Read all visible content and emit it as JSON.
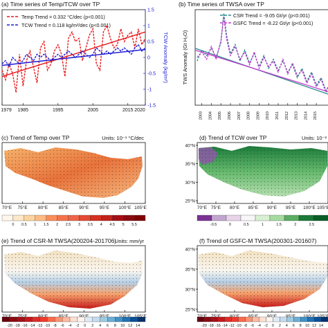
{
  "chart_data": [
    {
      "type": "line",
      "panel": "a",
      "title": "(a) Time series of Temp/TCW over TP",
      "x_ticks": [
        "1979",
        "1985",
        "1995",
        "2005",
        "2015",
        "2020"
      ],
      "x_tick_values": [
        1979,
        1985,
        1995,
        2005,
        2015,
        2020
      ],
      "xlim": [
        1979,
        2020
      ],
      "ylim_right": [
        -1.5,
        1.5
      ],
      "right_ticks": [
        "1.5",
        "1",
        "0.5",
        "0",
        "-0.5",
        "-1",
        "-1.5"
      ],
      "right_tick_values": [
        1.5,
        1,
        0.5,
        0,
        -0.5,
        -1,
        -1.5
      ],
      "ylabel_right": "TCW Anomaly (kg/m²)",
      "legend": [
        "Temp Trend = 0.332 °C/dec (p<0.001)",
        "TCW Trend = 0.118 kg/m²/dec (p<0.001)"
      ],
      "series": [
        {
          "name": "Temp Trend = 0.332 °C/dec (p<0.001)",
          "color": "#e8191b",
          "x": [
            1979,
            1980,
            1981,
            1982,
            1983,
            1984,
            1985,
            1986,
            1987,
            1988,
            1989,
            1990,
            1991,
            1992,
            1993,
            1994,
            1995,
            1996,
            1997,
            1998,
            1999,
            2000,
            2001,
            2002,
            2003,
            2004,
            2005,
            2006,
            2007,
            2008,
            2009,
            2010,
            2011,
            2012,
            2013,
            2014,
            2015,
            2016,
            2017,
            2018,
            2019,
            2020
          ],
          "y": [
            -0.4,
            -0.7,
            -0.2,
            -0.5,
            -1.1,
            0.1,
            -0.9,
            -0.1,
            0.2,
            -0.3,
            -0.8,
            0.3,
            0.5,
            -0.4,
            -0.2,
            0.2,
            0.4,
            0.1,
            -0.6,
            0.6,
            0.8,
            0.5,
            0.6,
            -0.1,
            0.3,
            0.7,
            0.9,
            -0.2,
            -0.4,
            0.8,
            1.0,
            0.6,
            0.3,
            0.4,
            0.9,
            0.5,
            0.7,
            0.8,
            0.3,
            0.9,
            0.4,
            0.6
          ],
          "trend": [
            -0.6,
            0.8
          ]
        },
        {
          "name": "TCW Trend = 0.118 kg/m²/dec (p<0.001)",
          "color": "#1a1ad6",
          "x": [
            1979,
            1980,
            1981,
            1982,
            1983,
            1984,
            1985,
            1986,
            1987,
            1988,
            1989,
            1990,
            1991,
            1992,
            1993,
            1994,
            1995,
            1996,
            1997,
            1998,
            1999,
            2000,
            2001,
            2002,
            2003,
            2004,
            2005,
            2006,
            2007,
            2008,
            2009,
            2010,
            2011,
            2012,
            2013,
            2014,
            2015,
            2016,
            2017,
            2018,
            2019,
            2020
          ],
          "y": [
            -0.2,
            -0.1,
            -0.3,
            0.0,
            -0.1,
            -0.2,
            -0.1,
            0.1,
            0.0,
            -0.1,
            0.1,
            0.0,
            0.1,
            0.0,
            -0.1,
            0.0,
            0.1,
            0.0,
            0.1,
            0.2,
            0.1,
            0.0,
            0.1,
            0.2,
            0.1,
            0.0,
            0.1,
            0.3,
            0.2,
            0.1,
            0.2,
            0.1,
            0.2,
            0.3,
            0.2,
            0.3,
            0.2,
            0.1,
            0.3,
            0.4,
            0.2,
            0.3
          ],
          "trend": [
            -0.25,
            0.25
          ]
        }
      ]
    },
    {
      "type": "line",
      "panel": "b",
      "title": "(b) Time series of TWSA over TP",
      "x_ticks": [
        "2003",
        "2004",
        "2005",
        "2006",
        "2007",
        "2008",
        "2009",
        "2010",
        "2011",
        "2012",
        "2013",
        "2014",
        "2015"
      ],
      "xlim": [
        2002.3,
        2016.8
      ],
      "ylabel": "TWS Anomaly (Gt H₂O)",
      "legend": [
        "CSR Trend = -9.05 Gt/yr (p<0.001)",
        "GSFC Trend = -8.22 Gt/yr (p<0.001)"
      ],
      "series": [
        {
          "name": "CSR Trend = -9.05 Gt/yr (p<0.001)",
          "color": "#2a8c8c",
          "x": [
            2002.5,
            2003,
            2003.5,
            2004,
            2004.5,
            2005,
            2005.3,
            2005.6,
            2006,
            2006.5,
            2007,
            2007.5,
            2008,
            2008.5,
            2009,
            2009.5,
            2010,
            2010.5,
            2011,
            2011.5,
            2012,
            2012.5,
            2013,
            2013.5,
            2014,
            2014.5,
            2015,
            2015.5,
            2016,
            2016.5
          ],
          "y": [
            40,
            70,
            55,
            75,
            50,
            90,
            170,
            110,
            60,
            85,
            40,
            70,
            35,
            60,
            25,
            55,
            20,
            45,
            15,
            40,
            10,
            30,
            -5,
            20,
            -15,
            10,
            -25,
            -5,
            -40,
            -20
          ],
          "trend": [
            75,
            -55
          ]
        },
        {
          "name": "GSFC Trend = -8.22 Gt/yr (p<0.001)",
          "color": "#c03ad0",
          "x": [
            2002.5,
            2003,
            2003.5,
            2004,
            2004.5,
            2005,
            2005.3,
            2005.6,
            2006,
            2006.5,
            2007,
            2007.5,
            2008,
            2008.5,
            2009,
            2009.5,
            2010,
            2010.5,
            2011,
            2011.5,
            2012,
            2012.5,
            2013,
            2013.5,
            2014,
            2014.5,
            2015,
            2015.5,
            2016,
            2016.5
          ],
          "y": [
            50,
            65,
            45,
            80,
            45,
            95,
            160,
            100,
            55,
            80,
            45,
            65,
            30,
            65,
            20,
            50,
            25,
            40,
            10,
            45,
            5,
            35,
            0,
            15,
            -20,
            5,
            -30,
            -10,
            -45,
            -15
          ],
          "trend": [
            70,
            -48
          ]
        }
      ]
    },
    {
      "type": "heatmap",
      "panel": "c",
      "title": "(c) Trend of Temp over TP",
      "units": "Units: 10⁻¹ °C/dec",
      "x_ticks": [
        "70°E",
        "75°E",
        "80°E",
        "85°E",
        "90°E",
        "95°E",
        "100°E",
        "105°E"
      ],
      "colorbar_ticks": [
        "0",
        "0.5",
        "1",
        "1.5",
        "2",
        "2.5",
        "3",
        "3.5",
        "4",
        "4.5",
        "5",
        "5.5"
      ]
    },
    {
      "type": "heatmap",
      "panel": "d",
      "title": "(d) Trend of TCW over TP",
      "units": "Units: 10⁻²",
      "x_ticks": [
        "70°E",
        "75°E",
        "80°E",
        "85°E",
        "90°E",
        "95°E",
        "100°E",
        "105°E"
      ],
      "y_ticks": [
        "40°N",
        "35°N",
        "30°N",
        "25°N"
      ],
      "colorbar_ticks": [
        "-0.5",
        "0",
        "0.5",
        "1",
        "1.5",
        "2",
        "2.5"
      ]
    },
    {
      "type": "heatmap",
      "panel": "e",
      "title": "(e) Trend of CSR-M TWSA(200204-201706)",
      "units": "Units: mm/yr",
      "x_ticks": [
        "70°E",
        "75°E",
        "80°E",
        "85°E",
        "90°E",
        "95°E",
        "100°E",
        "105°E"
      ],
      "colorbar_ticks": [
        "-20",
        "-18",
        "-16",
        "-14",
        "-12",
        "-10",
        "-8",
        "-6",
        "-4",
        "-2",
        "0",
        "2",
        "4",
        "6",
        "8",
        "10",
        "12",
        "14"
      ]
    },
    {
      "type": "heatmap",
      "panel": "f",
      "title": "(f) Trend of GSFC-M TWSA(200301-201607)",
      "x_ticks": [
        "70°E",
        "75°E",
        "80°E",
        "85°E",
        "90°E",
        "95°E",
        "100°E",
        "105°E"
      ],
      "y_ticks": [
        "40°N",
        "35°N",
        "30°N",
        "25°N"
      ],
      "colorbar_ticks": [
        "-20",
        "-18",
        "-16",
        "-14",
        "-12",
        "-10",
        "-8",
        "-6",
        "-4",
        "-2",
        "0",
        "2",
        "4",
        "6",
        "8",
        "10",
        "12",
        "14"
      ]
    }
  ]
}
